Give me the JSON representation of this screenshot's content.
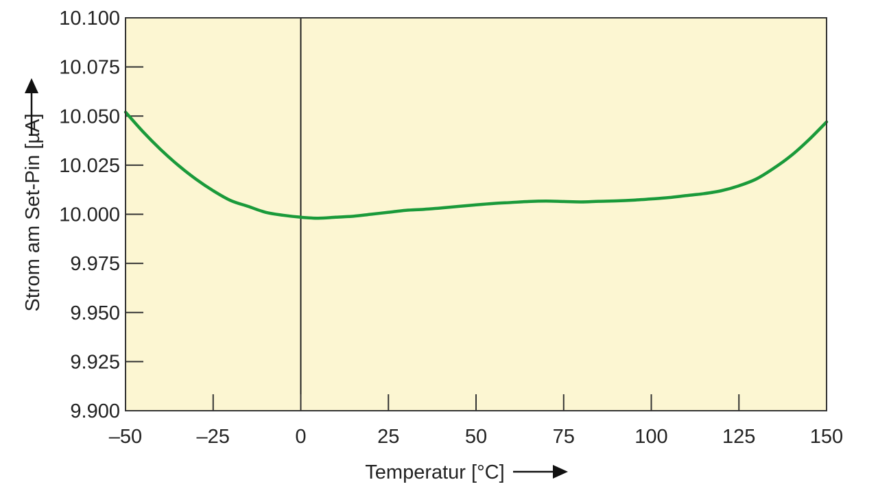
{
  "chart_data": {
    "type": "line",
    "title": "",
    "xlabel": "Temperatur [°C]",
    "ylabel": "Strom am Set-Pin [µA]",
    "xlim": [
      -50,
      150
    ],
    "ylim": [
      9.9,
      10.1
    ],
    "x_ticks": [
      -50,
      -25,
      0,
      25,
      50,
      75,
      100,
      125,
      150
    ],
    "x_tick_labels": [
      "–50",
      "–25",
      "0",
      "25",
      "50",
      "75",
      "100",
      "125",
      "150"
    ],
    "y_ticks": [
      9.9,
      9.925,
      9.95,
      9.975,
      10.0,
      10.025,
      10.05,
      10.075,
      10.1
    ],
    "y_tick_labels": [
      "9.900",
      "9.925",
      "9.950",
      "9.975",
      "10.000",
      "10.025",
      "10.050",
      "10.075",
      "10.100"
    ],
    "reference_line_x": 0,
    "series": [
      {
        "color": "#1a9a3a",
        "x": [
          -50,
          -45,
          -40,
          -35,
          -30,
          -25,
          -20,
          -15,
          -10,
          -5,
          0,
          5,
          10,
          15,
          20,
          25,
          30,
          35,
          40,
          45,
          50,
          55,
          60,
          65,
          70,
          75,
          80,
          85,
          90,
          95,
          100,
          105,
          110,
          115,
          120,
          125,
          130,
          135,
          140,
          145,
          150
        ],
        "y": [
          10.052,
          10.042,
          10.033,
          10.025,
          10.018,
          10.012,
          10.007,
          10.004,
          10.001,
          9.9995,
          9.9985,
          9.998,
          9.9985,
          9.999,
          10.0,
          10.001,
          10.002,
          10.0025,
          10.0032,
          10.004,
          10.0048,
          10.0055,
          10.006,
          10.0065,
          10.0067,
          10.0065,
          10.0063,
          10.0066,
          10.0068,
          10.0072,
          10.0078,
          10.0085,
          10.0095,
          10.0105,
          10.012,
          10.0145,
          10.018,
          10.0235,
          10.03,
          10.038,
          10.047
        ]
      }
    ],
    "grid": false,
    "plot_background": "#fcf6d2",
    "axis_color": "#333333"
  }
}
